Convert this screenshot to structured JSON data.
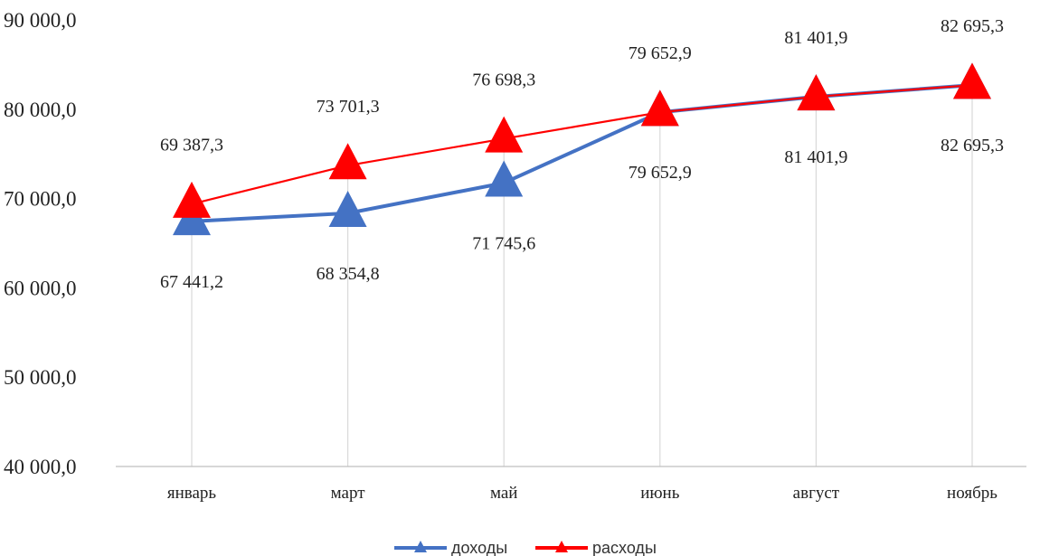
{
  "chart_data": {
    "type": "line",
    "categories": [
      "январь",
      "март",
      "май",
      "июнь",
      "август",
      "ноябрь"
    ],
    "series": [
      {
        "name": "доходы",
        "values": [
          67441.2,
          68354.8,
          71745.6,
          79652.9,
          81401.9,
          82695.3
        ],
        "labels": [
          "67 441,2",
          "68 354,8",
          "71 745,6",
          "79 652,9",
          "81 401,9",
          "82 695,3"
        ],
        "color": "#4472C4",
        "marker": "triangle"
      },
      {
        "name": "расходы",
        "values": [
          69387.3,
          73701.3,
          76698.3,
          79652.9,
          81401.9,
          82695.3
        ],
        "labels": [
          "69 387,3",
          "73 701,3",
          "76 698,3",
          "79 652,9",
          "81 401,9",
          "82 695,3"
        ],
        "color": "#FF0000",
        "marker": "triangle"
      }
    ],
    "ylim": [
      40000,
      90000
    ],
    "yticks": [
      40000,
      50000,
      60000,
      70000,
      80000,
      90000
    ],
    "ytick_labels": [
      "40 000,0",
      "50 000,0",
      "60 000,0",
      "70 000,0",
      "80 000,0",
      "90 000,0"
    ],
    "title": "",
    "xlabel": "",
    "ylabel": "",
    "grid": "vertical drop lines",
    "legend_position": "bottom-center",
    "axis_color": "#BFBFBF",
    "gridline_color": "#D9D9D9"
  }
}
